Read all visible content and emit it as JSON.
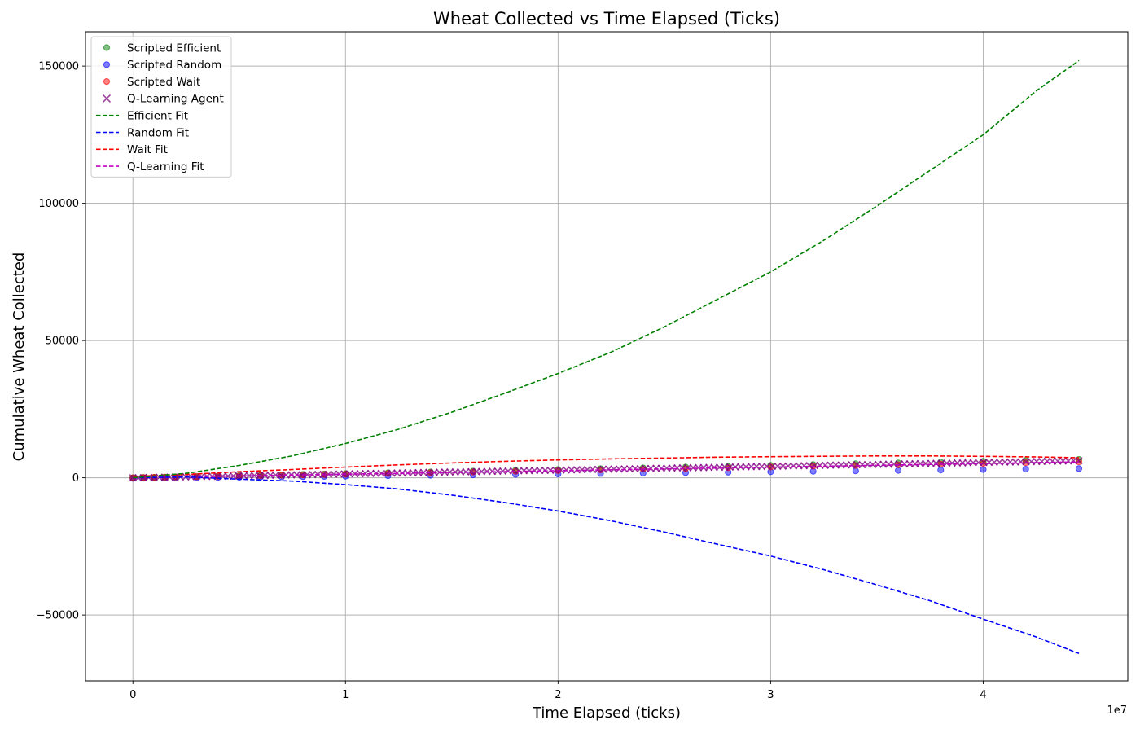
{
  "chart_data": {
    "type": "scatter",
    "title": "Wheat Collected vs Time Elapsed (Ticks)",
    "xlabel": "Time Elapsed (ticks)",
    "ylabel": "Cumulative Wheat Collected",
    "x_offset_text": "1e7",
    "xlim": [
      -2230000,
      46800000
    ],
    "ylim": [
      -74000,
      162500
    ],
    "x_ticks": [
      0,
      10000000,
      20000000,
      30000000,
      40000000
    ],
    "x_tick_labels": [
      "0",
      "1",
      "2",
      "3",
      "4"
    ],
    "y_ticks": [
      -50000,
      0,
      50000,
      100000,
      150000
    ],
    "y_tick_labels": [
      "−50000",
      "0",
      "50000",
      "100000",
      "150000"
    ],
    "grid": true,
    "legend_position": "top-left",
    "colors": {
      "efficient": "#008000",
      "random": "#0000ff",
      "wait": "#ff0000",
      "qlearning": "#800080",
      "qlearning_fit": "#bf00bf"
    },
    "legend": [
      {
        "label": "Scripted Efficient",
        "kind": "dot",
        "color": "#008000"
      },
      {
        "label": "Scripted Random",
        "kind": "dot",
        "color": "#0000ff"
      },
      {
        "label": "Scripted Wait",
        "kind": "dot",
        "color": "#ff0000"
      },
      {
        "label": "Q-Learning Agent",
        "kind": "x",
        "color": "#800080"
      },
      {
        "label": "Efficient Fit",
        "kind": "dash",
        "color": "#008000"
      },
      {
        "label": "Random Fit",
        "kind": "dash",
        "color": "#0000ff"
      },
      {
        "label": "Wait Fit",
        "kind": "dash",
        "color": "#ff0000"
      },
      {
        "label": "Q-Learning Fit",
        "kind": "dash",
        "color": "#bf00bf"
      }
    ],
    "series": [
      {
        "name": "Efficient Fit",
        "style": "dashed",
        "color": "#008000",
        "x": [
          0,
          2500000,
          5000000,
          7500000,
          10000000,
          12500000,
          15000000,
          17500000,
          20000000,
          22500000,
          25000000,
          27500000,
          30000000,
          32500000,
          35000000,
          37500000,
          40000000,
          42500000,
          44500000
        ],
        "y": [
          0,
          1600,
          4500,
          8000,
          12500,
          17700,
          23900,
          30800,
          38000,
          45800,
          55000,
          65000,
          75000,
          86500,
          99000,
          112000,
          125000,
          141000,
          152000
        ]
      },
      {
        "name": "Random Fit",
        "style": "dashed",
        "color": "#0000ff",
        "x": [
          0,
          2500000,
          5000000,
          7500000,
          10000000,
          12500000,
          15000000,
          17500000,
          20000000,
          22500000,
          25000000,
          27500000,
          30000000,
          32500000,
          35000000,
          37500000,
          40000000,
          42500000,
          44500000
        ],
        "y": [
          0,
          300,
          -500,
          -1200,
          -2500,
          -4100,
          -6300,
          -9000,
          -12100,
          -15700,
          -19800,
          -24200,
          -28500,
          -33500,
          -39000,
          -44800,
          -51500,
          -58000,
          -64000
        ]
      },
      {
        "name": "Wait Fit",
        "style": "dashed",
        "color": "#ff0000",
        "x": [
          0,
          2500000,
          5000000,
          7500000,
          10000000,
          12500000,
          15000000,
          17500000,
          20000000,
          22500000,
          25000000,
          27500000,
          30000000,
          32500000,
          35000000,
          37500000,
          40000000,
          42500000,
          44500000
        ],
        "y": [
          500,
          1200,
          2200,
          3000,
          3900,
          4700,
          5400,
          6000,
          6500,
          6900,
          7200,
          7500,
          7700,
          7850,
          7950,
          7950,
          7800,
          7600,
          7300
        ]
      },
      {
        "name": "Q-Learning Fit",
        "style": "dashed",
        "color": "#bf00bf",
        "x": [
          0,
          5000000,
          10000000,
          15000000,
          20000000,
          25000000,
          30000000,
          35000000,
          40000000,
          44500000
        ],
        "y": [
          0,
          650,
          1300,
          1950,
          2600,
          3250,
          3900,
          4550,
          5200,
          5800
        ]
      },
      {
        "name": "Scripted Efficient",
        "style": "scatter-dot",
        "color": "#008000",
        "x": [
          0,
          500000,
          1000000,
          1500000,
          2000000,
          3000000,
          4000000,
          5000000,
          6000000,
          7000000,
          8000000,
          9000000,
          10000000,
          12000000,
          14000000,
          16000000,
          18000000,
          20000000,
          22000000,
          24000000,
          26000000,
          28000000,
          30000000,
          32000000,
          34000000,
          36000000,
          38000000,
          40000000,
          42000000,
          44500000
        ],
        "y": [
          0,
          80,
          160,
          240,
          320,
          470,
          620,
          770,
          920,
          1070,
          1220,
          1370,
          1520,
          1820,
          2120,
          2420,
          2720,
          3020,
          3320,
          3620,
          3920,
          4220,
          4520,
          4820,
          5120,
          5420,
          5720,
          6020,
          6320,
          6700
        ]
      },
      {
        "name": "Scripted Random",
        "style": "scatter-dot",
        "color": "#0000ff",
        "x": [
          0,
          500000,
          1000000,
          1500000,
          2000000,
          3000000,
          4000000,
          5000000,
          6000000,
          7000000,
          8000000,
          9000000,
          10000000,
          12000000,
          14000000,
          16000000,
          18000000,
          20000000,
          22000000,
          24000000,
          26000000,
          28000000,
          30000000,
          32000000,
          34000000,
          36000000,
          38000000,
          40000000,
          42000000,
          44500000
        ],
        "y": [
          -200,
          -150,
          -120,
          -90,
          -50,
          20,
          100,
          180,
          260,
          340,
          420,
          500,
          580,
          740,
          900,
          1060,
          1220,
          1380,
          1540,
          1700,
          1860,
          2020,
          2180,
          2340,
          2500,
          2660,
          2820,
          2980,
          3140,
          3340
        ]
      },
      {
        "name": "Scripted Wait",
        "style": "scatter-dot",
        "color": "#ff0000",
        "x": [
          0,
          500000,
          1000000,
          1500000,
          2000000,
          3000000,
          4000000,
          5000000,
          6000000,
          7000000,
          8000000,
          9000000,
          10000000,
          12000000,
          14000000,
          16000000,
          18000000,
          20000000,
          22000000,
          24000000,
          26000000,
          28000000,
          30000000,
          32000000,
          34000000,
          36000000,
          38000000,
          40000000,
          42000000,
          44500000
        ],
        "y": [
          0,
          70,
          140,
          210,
          280,
          410,
          540,
          670,
          800,
          930,
          1060,
          1190,
          1320,
          1580,
          1840,
          2100,
          2360,
          2620,
          2880,
          3140,
          3400,
          3660,
          3920,
          4180,
          4440,
          4700,
          4960,
          5220,
          5480,
          5800
        ]
      },
      {
        "name": "Q-Learning Agent",
        "style": "scatter-x",
        "color": "#800080",
        "x_start": 0,
        "x_end": 44500000,
        "count": 180,
        "y_start": 0,
        "y_end": 6200
      }
    ]
  }
}
